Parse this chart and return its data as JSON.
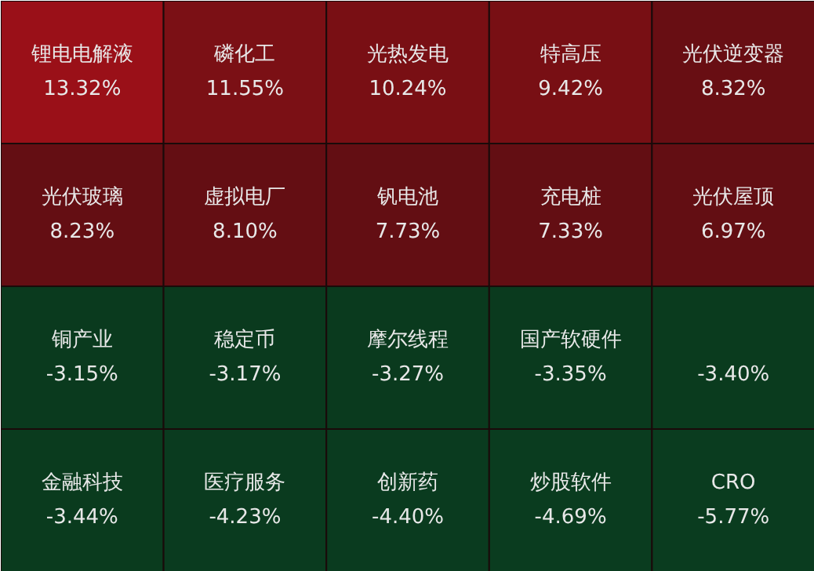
{
  "chart_data": {
    "type": "other",
    "categories": [
      "锂电电解液",
      "磷化工",
      "光热发电",
      "特高压",
      "光伏逆变器",
      "光伏玻璃",
      "虚拟电厂",
      "钒电池",
      "充电桩",
      "光伏屋顶",
      "铜产业",
      "稳定币",
      "摩尔线程",
      "国产软硬件",
      null,
      "金融科技",
      "医疗服务",
      "创新药",
      "炒股软件",
      "CRO"
    ],
    "values": [
      13.32,
      11.55,
      10.24,
      9.42,
      8.32,
      8.23,
      8.1,
      7.73,
      7.33,
      6.97,
      -3.15,
      -3.17,
      -3.27,
      -3.35,
      -3.4,
      -3.44,
      -4.23,
      -4.4,
      -4.69,
      -5.77
    ],
    "value_labels": [
      "13.32%",
      "11.55%",
      "10.24%",
      "9.42%",
      "8.32%",
      "8.23%",
      "8.10%",
      "7.73%",
      "7.33%",
      "6.97%",
      "-3.15%",
      "-3.17%",
      "-3.27%",
      "-3.35%",
      "-3.40%",
      "-3.44%",
      "-4.23%",
      "-4.40%",
      "-4.69%",
      "-5.77%"
    ],
    "colors": [
      "#9a1018",
      "#7d1015",
      "#7d1015",
      "#7d1015",
      "#6e0f14",
      "#6a0f14",
      "#6a0f14",
      "#6a0f14",
      "#6a0f14",
      "#6a0f14",
      "#0b4222",
      "#0b4222",
      "#0b4222",
      "#0b4222",
      "#0b4222",
      "#0b4222",
      "#0b4222",
      "#0b4222",
      "#0b4222",
      "#0b4222"
    ]
  }
}
